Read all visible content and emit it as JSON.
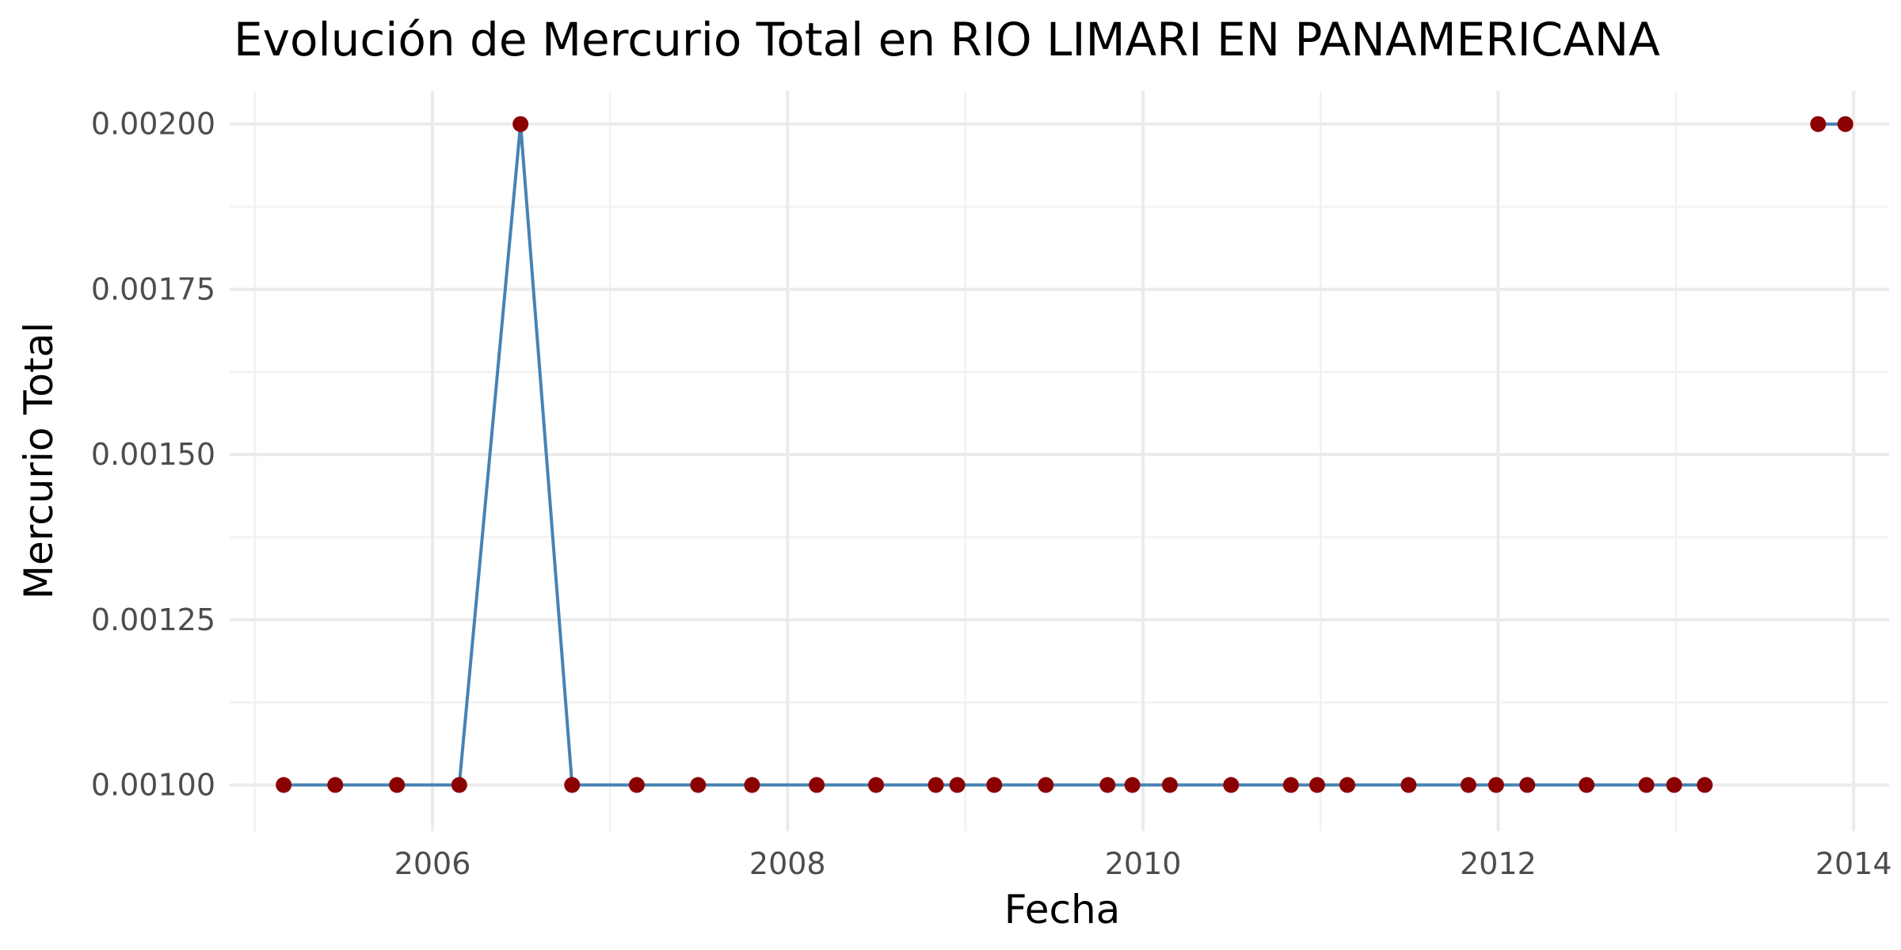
{
  "chart_data": {
    "type": "line",
    "title": "Evolución de Mercurio Total en RIO LIMARI EN PANAMERICANA",
    "xlabel": "Fecha",
    "ylabel": "Mercurio Total",
    "x_scale": "date",
    "xlim": [
      "2004-11-10",
      "2014-03-15"
    ],
    "ylim": [
      0.00093,
      0.00205
    ],
    "x_ticks": [
      "2006-01-01",
      "2008-01-01",
      "2010-01-01",
      "2012-01-01",
      "2014-01-01"
    ],
    "x_tick_labels": [
      "2006",
      "2008",
      "2010",
      "2012",
      "2014"
    ],
    "y_ticks": [
      0.001,
      0.00125,
      0.0015,
      0.00175,
      0.002
    ],
    "y_tick_labels": [
      "0.00100",
      "0.00125",
      "0.00150",
      "0.00175",
      "0.00200"
    ],
    "grid": true,
    "legend": "none",
    "line_color": "#4682b4",
    "point_color": "#8b0000",
    "series": [
      {
        "segments": [
          [
            {
              "x": "2005-03-01",
              "y": 0.001
            },
            {
              "x": "2005-06-15",
              "y": 0.001
            },
            {
              "x": "2005-10-20",
              "y": 0.001
            },
            {
              "x": "2006-02-25",
              "y": 0.001
            },
            {
              "x": "2006-07-01",
              "y": 0.002
            },
            {
              "x": "2006-10-15",
              "y": 0.001
            },
            {
              "x": "2007-02-25",
              "y": 0.001
            },
            {
              "x": "2007-07-01",
              "y": 0.001
            },
            {
              "x": "2007-10-20",
              "y": 0.001
            },
            {
              "x": "2008-03-01",
              "y": 0.001
            },
            {
              "x": "2008-07-01",
              "y": 0.001
            },
            {
              "x": "2008-11-01",
              "y": 0.001
            },
            {
              "x": "2008-12-15",
              "y": 0.001
            },
            {
              "x": "2009-03-01",
              "y": 0.001
            },
            {
              "x": "2009-06-15",
              "y": 0.001
            },
            {
              "x": "2009-10-20",
              "y": 0.001
            },
            {
              "x": "2009-12-10",
              "y": 0.001
            },
            {
              "x": "2010-02-25",
              "y": 0.001
            },
            {
              "x": "2010-07-01",
              "y": 0.001
            },
            {
              "x": "2010-11-01",
              "y": 0.001
            },
            {
              "x": "2010-12-25",
              "y": 0.001
            },
            {
              "x": "2011-02-25",
              "y": 0.001
            },
            {
              "x": "2011-07-01",
              "y": 0.001
            },
            {
              "x": "2011-11-01",
              "y": 0.001
            },
            {
              "x": "2011-12-28",
              "y": 0.001
            },
            {
              "x": "2012-03-01",
              "y": 0.001
            },
            {
              "x": "2012-07-01",
              "y": 0.001
            },
            {
              "x": "2012-11-01",
              "y": 0.001
            },
            {
              "x": "2012-12-28",
              "y": 0.001
            },
            {
              "x": "2013-03-01",
              "y": 0.001
            }
          ],
          [
            {
              "x": "2013-10-20",
              "y": 0.002
            },
            {
              "x": "2013-12-15",
              "y": 0.002
            }
          ]
        ]
      }
    ]
  }
}
